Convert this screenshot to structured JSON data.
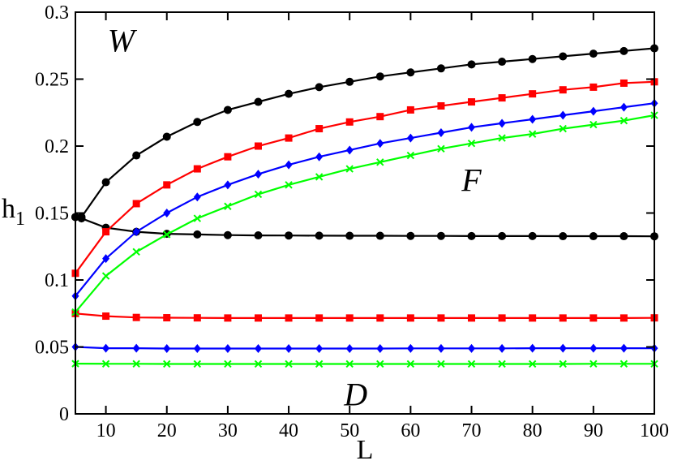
{
  "chart_data": {
    "type": "line",
    "xlabel": "L",
    "ylabel": "h",
    "ylabel_subscript": "1",
    "xlim": [
      5,
      100
    ],
    "ylim": [
      0,
      0.3
    ],
    "grid": false,
    "x_ticks": [
      10,
      20,
      30,
      40,
      50,
      60,
      70,
      80,
      90,
      100
    ],
    "x_tick_labels": [
      "10",
      "20",
      "30",
      "40",
      "50",
      "60",
      "70",
      "80",
      "90",
      "100"
    ],
    "y_ticks": [
      0,
      0.05,
      0.1,
      0.15,
      0.2,
      0.25,
      0.3
    ],
    "y_tick_labels": [
      "0",
      "0.05",
      "0.1",
      "0.15",
      "0.2",
      "0.25",
      "0.3"
    ],
    "annotations": [
      {
        "text": "W",
        "x": 12.5,
        "y": 0.279
      },
      {
        "text": "F",
        "x": 70,
        "y": 0.175
      },
      {
        "text": "D",
        "x": 51,
        "y": 0.015
      }
    ],
    "series": [
      {
        "color": "#000000",
        "marker": "circle",
        "x": [
          5,
          6,
          10,
          15,
          20,
          25,
          30,
          35,
          40,
          45,
          50,
          55,
          60,
          65,
          70,
          75,
          80,
          85,
          90,
          95,
          100
        ],
        "y": [
          0.147,
          0.147,
          0.173,
          0.193,
          0.207,
          0.218,
          0.227,
          0.233,
          0.239,
          0.244,
          0.248,
          0.252,
          0.255,
          0.258,
          0.261,
          0.263,
          0.265,
          0.267,
          0.269,
          0.271,
          0.273
        ]
      },
      {
        "color": "#000000",
        "marker": "circle",
        "x": [
          5,
          6,
          10,
          15,
          20,
          25,
          30,
          35,
          40,
          45,
          50,
          55,
          60,
          65,
          70,
          75,
          80,
          85,
          90,
          95,
          100
        ],
        "y": [
          0.147,
          0.146,
          0.139,
          0.136,
          0.1345,
          0.134,
          0.1335,
          0.1333,
          0.1332,
          0.1331,
          0.133,
          0.133,
          0.1329,
          0.1329,
          0.1328,
          0.1328,
          0.1328,
          0.1327,
          0.1327,
          0.1327,
          0.1326
        ]
      },
      {
        "color": "#ff0000",
        "marker": "square",
        "x": [
          5,
          10,
          15,
          20,
          25,
          30,
          35,
          40,
          45,
          50,
          55,
          60,
          65,
          70,
          75,
          80,
          85,
          90,
          95,
          100
        ],
        "y": [
          0.105,
          0.136,
          0.157,
          0.171,
          0.183,
          0.192,
          0.2,
          0.206,
          0.213,
          0.218,
          0.222,
          0.227,
          0.23,
          0.233,
          0.236,
          0.239,
          0.242,
          0.244,
          0.247,
          0.248
        ]
      },
      {
        "color": "#ff0000",
        "marker": "square",
        "x": [
          5,
          10,
          15,
          20,
          25,
          30,
          35,
          40,
          45,
          50,
          55,
          60,
          65,
          70,
          75,
          80,
          85,
          90,
          95,
          100
        ],
        "y": [
          0.075,
          0.073,
          0.072,
          0.0718,
          0.0717,
          0.0716,
          0.0716,
          0.0716,
          0.0716,
          0.0716,
          0.0716,
          0.0716,
          0.0716,
          0.0716,
          0.0716,
          0.0716,
          0.0716,
          0.0716,
          0.0716,
          0.0717
        ]
      },
      {
        "color": "#0000ff",
        "marker": "diamond",
        "x": [
          5,
          10,
          15,
          20,
          25,
          30,
          35,
          40,
          45,
          50,
          55,
          60,
          65,
          70,
          75,
          80,
          85,
          90,
          95,
          100
        ],
        "y": [
          0.088,
          0.116,
          0.136,
          0.15,
          0.162,
          0.171,
          0.179,
          0.186,
          0.192,
          0.197,
          0.202,
          0.206,
          0.21,
          0.214,
          0.217,
          0.22,
          0.223,
          0.226,
          0.229,
          0.232
        ]
      },
      {
        "color": "#0000ff",
        "marker": "diamond",
        "x": [
          5,
          10,
          15,
          20,
          25,
          30,
          35,
          40,
          45,
          50,
          55,
          60,
          65,
          70,
          75,
          80,
          85,
          90,
          95,
          100
        ],
        "y": [
          0.05,
          0.049,
          0.049,
          0.0488,
          0.0488,
          0.0488,
          0.0488,
          0.0488,
          0.0488,
          0.0488,
          0.0488,
          0.0489,
          0.0489,
          0.0489,
          0.0489,
          0.049,
          0.049,
          0.049,
          0.049,
          0.049
        ]
      },
      {
        "color": "#00ff00",
        "marker": "x",
        "x": [
          5,
          10,
          15,
          20,
          25,
          30,
          35,
          40,
          45,
          50,
          55,
          60,
          65,
          70,
          75,
          80,
          85,
          90,
          95,
          100
        ],
        "y": [
          0.076,
          0.103,
          0.121,
          0.134,
          0.146,
          0.155,
          0.164,
          0.171,
          0.177,
          0.183,
          0.188,
          0.193,
          0.198,
          0.202,
          0.206,
          0.209,
          0.213,
          0.216,
          0.219,
          0.223
        ]
      },
      {
        "color": "#00ff00",
        "marker": "x",
        "x": [
          5,
          10,
          15,
          20,
          25,
          30,
          35,
          40,
          45,
          50,
          55,
          60,
          65,
          70,
          75,
          80,
          85,
          90,
          95,
          100
        ],
        "y": [
          0.0375,
          0.0374,
          0.0374,
          0.0373,
          0.0373,
          0.0373,
          0.0373,
          0.0373,
          0.0373,
          0.0373,
          0.0373,
          0.0373,
          0.0373,
          0.0373,
          0.0373,
          0.0373,
          0.0373,
          0.0374,
          0.0374,
          0.0374
        ]
      }
    ]
  }
}
